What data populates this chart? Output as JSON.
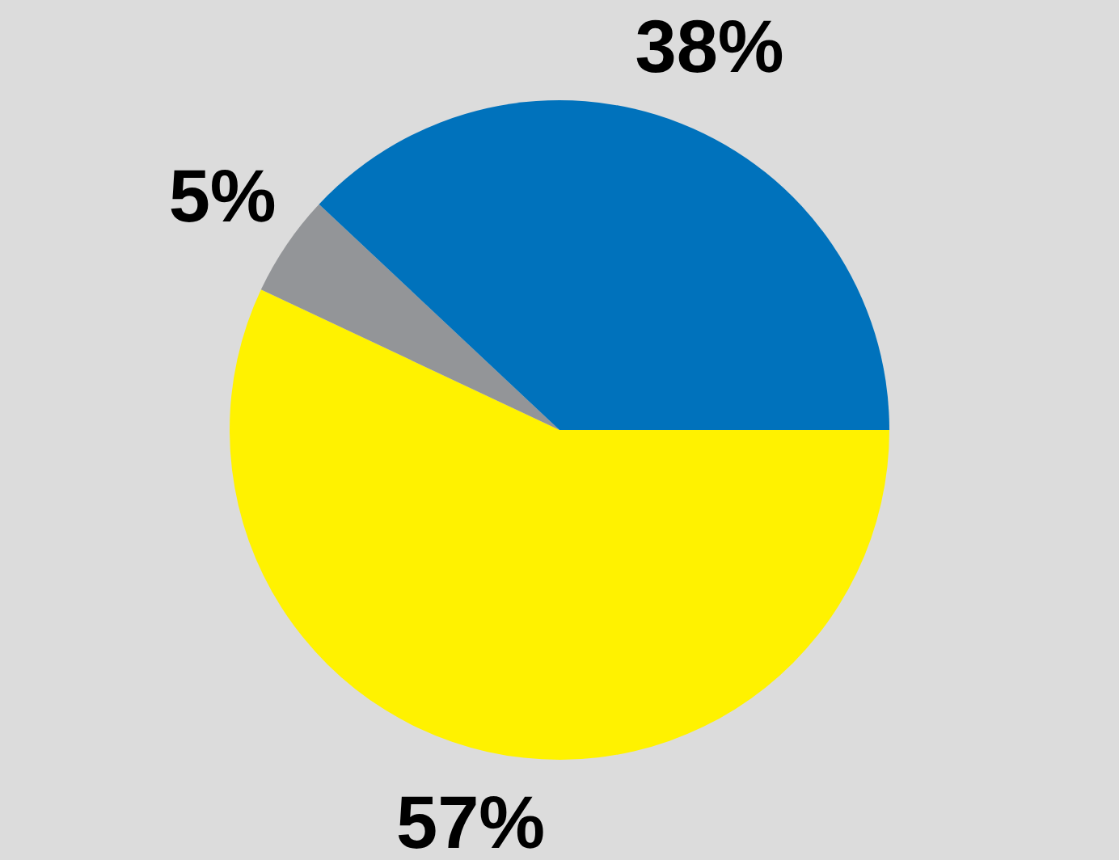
{
  "chart_data": {
    "type": "pie",
    "categories": [
      null,
      null,
      null
    ],
    "values": [
      57,
      5,
      38
    ],
    "colors": [
      "#fff200",
      "#939598",
      "#0072bc"
    ],
    "value_labels": [
      "57%",
      "5%",
      "38%"
    ],
    "legend": false
  }
}
